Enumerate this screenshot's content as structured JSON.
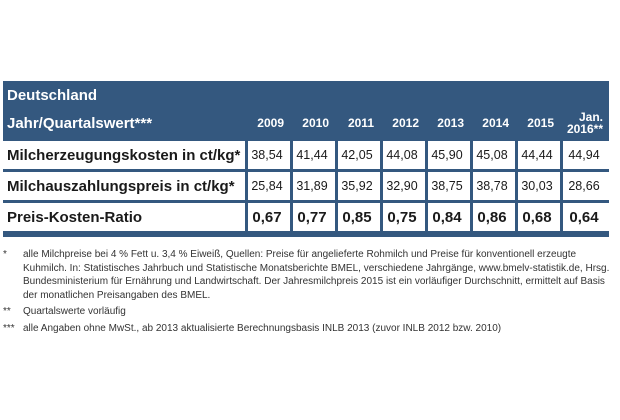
{
  "region": "Deutschland",
  "header_label": "Jahr/Quartalswert***",
  "years": [
    "2009",
    "2010",
    "2011",
    "2012",
    "2013",
    "2014",
    "2015",
    "Jan. 2016**"
  ],
  "rows": [
    {
      "label": "Milcherzeugungskosten in ct/kg*",
      "values": [
        "38,54",
        "41,44",
        "42,05",
        "44,08",
        "45,90",
        "45,08",
        "44,44",
        "44,94"
      ]
    },
    {
      "label": "Milchauszahlungspreis in ct/kg*",
      "values": [
        "25,84",
        "31,89",
        "35,92",
        "32,90",
        "38,75",
        "38,78",
        "30,03",
        "28,66"
      ]
    },
    {
      "label": "Preis-Kosten-Ratio",
      "values": [
        "0,67",
        "0,77",
        "0,85",
        "0,75",
        "0,84",
        "0,86",
        "0,68",
        "0,64"
      ]
    }
  ],
  "notes": [
    {
      "mark": "*",
      "text": "alle Milchpreise bei 4 % Fett u. 3,4 % Eiweiß, Quellen: Preise für angelieferte Rohmilch und Preise für konventionell erzeugte Kuhmilch. In: Statistisches Jahrbuch und Statistische Monatsberichte BMEL, verschiedene Jahrgänge, www.bmelv-statistik.de, Hrsg. Bundesministerium für Ernährung und Landwirtschaft. Der Jahresmilchpreis 2015 ist ein vorläufiger Durchschnitt, ermittelt auf Basis der monatlichen Preisangaben des BMEL."
    },
    {
      "mark": "**",
      "text": "Quartalswerte vorläufig"
    },
    {
      "mark": "***",
      "text": "alle Angaben ohne MwSt., ab 2013 aktualisierte Berechnungsbasis INLB 2013 (zuvor INLB 2012 bzw. 2010)"
    }
  ]
}
